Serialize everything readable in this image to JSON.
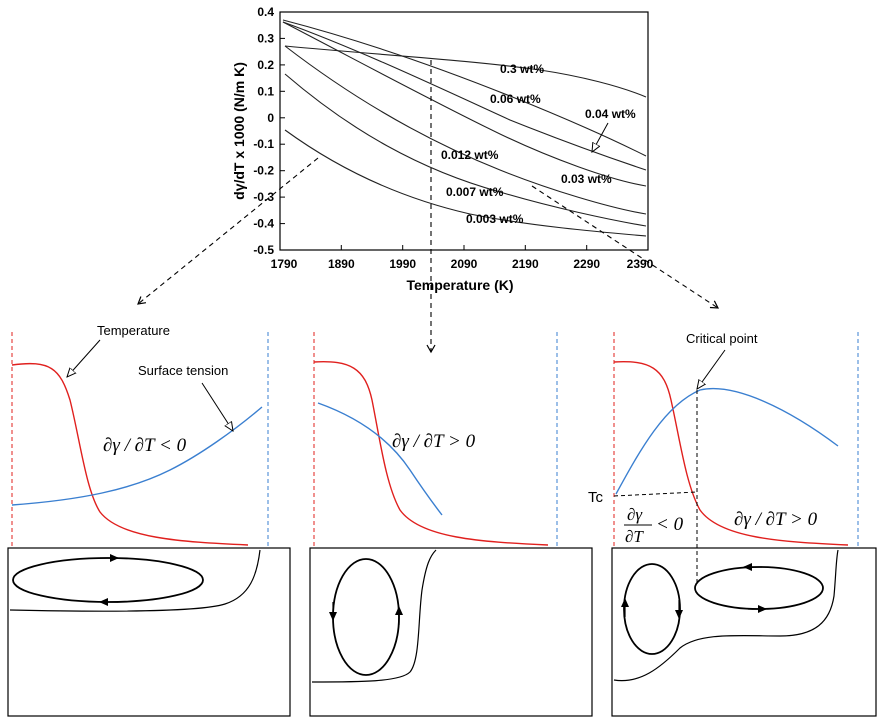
{
  "top_chart": {
    "xlabel": "Temperature (K)",
    "ylabel": "dγ/dT x 1000 (N/m K)",
    "x_ticks": [
      "1790",
      "1890",
      "1990",
      "2090",
      "2190",
      "2290",
      "2390"
    ],
    "y_ticks": [
      "0.4",
      "0.3",
      "0.2",
      "0.1",
      "0",
      "-0.1",
      "-0.2",
      "-0.3",
      "-0.4",
      "-0.5"
    ],
    "series_labels": {
      "s03": "0.3 wt%",
      "s006": "0.06 wt%",
      "s004": "0.04 wt%",
      "s003b": "0.03 wt%",
      "s0012": "0.012 wt%",
      "s0007": "0.007 wt%",
      "s0003": "0.003 wt%"
    }
  },
  "panels": {
    "left": {
      "temperature_label": "Temperature",
      "surface_tension_label": "Surface tension",
      "relation": "∂γ / ∂T < 0"
    },
    "middle": {
      "relation": "∂γ / ∂T > 0"
    },
    "right": {
      "critical_point_label": "Critical point",
      "tc_label": "Tc",
      "relation_left_num": "∂γ",
      "relation_left_den": "∂T",
      "relation_left_op": "< 0",
      "relation_right": "∂γ / ∂T > 0"
    }
  },
  "colors": {
    "temperature_curve": "#e0201e",
    "surface_tension_curve": "#3a7fd0",
    "left_boundary": "#e0201e",
    "right_boundary": "#3a7fd0"
  }
}
